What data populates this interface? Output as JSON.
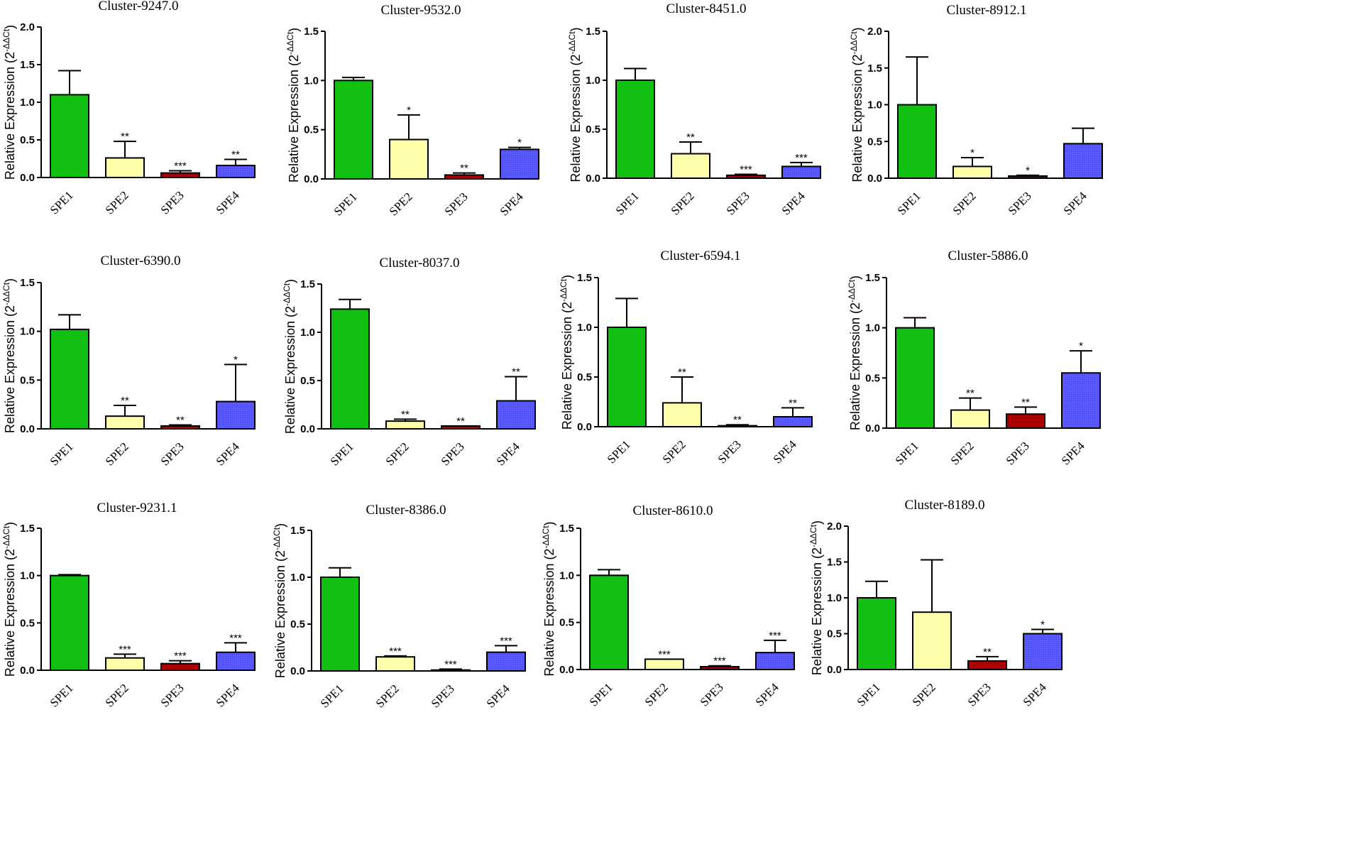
{
  "ylabel_main": "Relative Expression (2",
  "ylabel_sup": "-ΔΔCt",
  "ylabel_close": ")",
  "chart_data": [
    {
      "type": "bar",
      "title": "Cluster-9247.0",
      "categories": [
        "SPE1",
        "SPE2",
        "SPE3",
        "SPE4"
      ],
      "values": [
        1.1,
        0.26,
        0.06,
        0.16
      ],
      "errors": [
        0.32,
        0.22,
        0.03,
        0.08
      ],
      "significance": [
        "",
        "**",
        "***",
        "**"
      ],
      "ylim": [
        0,
        2.0
      ],
      "yticks": [
        "0.0",
        "0.5",
        "1.0",
        "1.5",
        "2.0"
      ],
      "ylabel": "Relative Expression (2-ΔΔCt)",
      "colors": [
        "#11c011",
        "#ffffaa",
        "#aa0000",
        "#5555ff"
      ]
    },
    {
      "type": "bar",
      "title": "Cluster-9532.0",
      "categories": [
        "SPE1",
        "SPE2",
        "SPE3",
        "SPE4"
      ],
      "values": [
        1.0,
        0.4,
        0.04,
        0.3
      ],
      "errors": [
        0.03,
        0.25,
        0.02,
        0.02
      ],
      "significance": [
        "",
        "*",
        "**",
        "*"
      ],
      "ylim": [
        0,
        1.5
      ],
      "yticks": [
        "0.0",
        "0.5",
        "1.0",
        "1.5"
      ],
      "ylabel": "Relative Expression (2-ΔΔCt)",
      "colors": [
        "#11c011",
        "#ffffaa",
        "#aa0000",
        "#5555ff"
      ]
    },
    {
      "type": "bar",
      "title": "Cluster-8451.0",
      "categories": [
        "SPE1",
        "SPE2",
        "SPE3",
        "SPE4"
      ],
      "values": [
        1.0,
        0.25,
        0.03,
        0.12
      ],
      "errors": [
        0.12,
        0.12,
        0.01,
        0.04
      ],
      "significance": [
        "",
        "**",
        "***",
        "***"
      ],
      "ylim": [
        0,
        1.5
      ],
      "yticks": [
        "0.0",
        "0.5",
        "1.0",
        "1.5"
      ],
      "ylabel": "Relative Expression (2-ΔΔCt)",
      "colors": [
        "#11c011",
        "#ffffaa",
        "#aa0000",
        "#5555ff"
      ]
    },
    {
      "type": "bar",
      "title": "Cluster-8912.1",
      "categories": [
        "SPE1",
        "SPE2",
        "SPE3",
        "SPE4"
      ],
      "values": [
        1.0,
        0.16,
        0.03,
        0.47
      ],
      "errors": [
        0.65,
        0.12,
        0.01,
        0.21
      ],
      "significance": [
        "",
        "*",
        "*",
        ""
      ],
      "ylim": [
        0,
        2.0
      ],
      "yticks": [
        "0.0",
        "0.5",
        "1.0",
        "1.5",
        "2.0"
      ],
      "ylabel": "Relative Expression (2-ΔΔCt)",
      "colors": [
        "#11c011",
        "#ffffaa",
        "#aa0000",
        "#5555ff"
      ]
    },
    {
      "type": "bar",
      "title": "Cluster-6390.0",
      "categories": [
        "SPE1",
        "SPE2",
        "SPE3",
        "SPE4"
      ],
      "values": [
        1.02,
        0.13,
        0.03,
        0.28
      ],
      "errors": [
        0.15,
        0.11,
        0.01,
        0.38
      ],
      "significance": [
        "",
        "**",
        "**",
        "*"
      ],
      "ylim": [
        0,
        1.5
      ],
      "yticks": [
        "0.0",
        "0.5",
        "1.0",
        "1.5"
      ],
      "ylabel": "Relative Expression (2-ΔΔCt)",
      "colors": [
        "#11c011",
        "#ffffaa",
        "#aa0000",
        "#5555ff"
      ]
    },
    {
      "type": "bar",
      "title": "Cluster-8037.0",
      "categories": [
        "SPE1",
        "SPE2",
        "SPE3",
        "SPE4"
      ],
      "values": [
        1.24,
        0.08,
        0.03,
        0.29
      ],
      "errors": [
        0.1,
        0.02,
        0.0,
        0.25
      ],
      "significance": [
        "",
        "**",
        "**",
        "**"
      ],
      "ylim": [
        0,
        1.5
      ],
      "yticks": [
        "0.0",
        "0.5",
        "1.0",
        "1.5"
      ],
      "ylabel": "Relative Expression (2-ΔΔCt)",
      "colors": [
        "#11c011",
        "#ffffaa",
        "#aa0000",
        "#5555ff"
      ]
    },
    {
      "type": "bar",
      "title": "Cluster-6594.1",
      "categories": [
        "SPE1",
        "SPE2",
        "SPE3",
        "SPE4"
      ],
      "values": [
        1.0,
        0.24,
        0.01,
        0.1
      ],
      "errors": [
        0.29,
        0.26,
        0.01,
        0.09
      ],
      "significance": [
        "",
        "**",
        "**",
        "**"
      ],
      "ylim": [
        0,
        1.5
      ],
      "yticks": [
        "0.0",
        "0.5",
        "1.0",
        "1.5"
      ],
      "ylabel": "Relative Expression (2-ΔΔCt)",
      "colors": [
        "#11c011",
        "#ffffaa",
        "#aa0000",
        "#5555ff"
      ]
    },
    {
      "type": "bar",
      "title": "Cluster-5886.0",
      "categories": [
        "SPE1",
        "SPE2",
        "SPE3",
        "SPE4"
      ],
      "values": [
        1.0,
        0.18,
        0.14,
        0.55
      ],
      "errors": [
        0.1,
        0.12,
        0.07,
        0.22
      ],
      "significance": [
        "",
        "**",
        "**",
        "*"
      ],
      "ylim": [
        0,
        1.5
      ],
      "yticks": [
        "0.0",
        "0.5",
        "1.0",
        "1.5"
      ],
      "ylabel": "Relative Expression (2-ΔΔCt)",
      "colors": [
        "#11c011",
        "#ffffaa",
        "#aa0000",
        "#5555ff"
      ]
    },
    {
      "type": "bar",
      "title": "Cluster-9231.1",
      "categories": [
        "SPE1",
        "SPE2",
        "SPE3",
        "SPE4"
      ],
      "values": [
        1.0,
        0.13,
        0.07,
        0.19
      ],
      "errors": [
        0.01,
        0.04,
        0.03,
        0.1
      ],
      "significance": [
        "",
        "***",
        "***",
        "***"
      ],
      "ylim": [
        0,
        1.5
      ],
      "yticks": [
        "0.0",
        "0.5",
        "1.0",
        "1.5"
      ],
      "ylabel": "Relative Expression (2-ΔΔCt)",
      "colors": [
        "#11c011",
        "#ffffaa",
        "#aa0000",
        "#5555ff"
      ]
    },
    {
      "type": "bar",
      "title": "Cluster-8386.0",
      "categories": [
        "SPE1",
        "SPE2",
        "SPE3",
        "SPE4"
      ],
      "values": [
        1.0,
        0.15,
        0.01,
        0.2
      ],
      "errors": [
        0.1,
        0.01,
        0.01,
        0.07
      ],
      "significance": [
        "",
        "***",
        "***",
        "***"
      ],
      "ylim": [
        0,
        1.5
      ],
      "yticks": [
        "0.0",
        "0.5",
        "1.0",
        "1.5"
      ],
      "ylabel": "Relative Expression (2-ΔΔCt)",
      "colors": [
        "#11c011",
        "#ffffaa",
        "#aa0000",
        "#5555ff"
      ]
    },
    {
      "type": "bar",
      "title": "Cluster-8610.0",
      "categories": [
        "SPE1",
        "SPE2",
        "SPE3",
        "SPE4"
      ],
      "values": [
        1.0,
        0.11,
        0.03,
        0.18
      ],
      "errors": [
        0.06,
        0.0,
        0.01,
        0.13
      ],
      "significance": [
        "",
        "***",
        "***",
        "***"
      ],
      "ylim": [
        0,
        1.5
      ],
      "yticks": [
        "0.0",
        "0.5",
        "1.0",
        "1.5"
      ],
      "ylabel": "Relative Expression (2-ΔΔCt)",
      "colors": [
        "#11c011",
        "#ffffaa",
        "#aa0000",
        "#5555ff"
      ]
    },
    {
      "type": "bar",
      "title": "Cluster-8189.0",
      "categories": [
        "SPE1",
        "SPE2",
        "SPE3",
        "SPE4"
      ],
      "values": [
        1.0,
        0.8,
        0.12,
        0.5
      ],
      "errors": [
        0.23,
        0.73,
        0.06,
        0.06
      ],
      "significance": [
        "",
        "",
        "**",
        "*"
      ],
      "ylim": [
        0,
        2.0
      ],
      "yticks": [
        "0.0",
        "0.5",
        "1.0",
        "1.5",
        "2.0"
      ],
      "ylabel": "Relative Expression (2-ΔΔCt)",
      "colors": [
        "#11c011",
        "#ffffaa",
        "#aa0000",
        "#5555ff"
      ]
    }
  ]
}
